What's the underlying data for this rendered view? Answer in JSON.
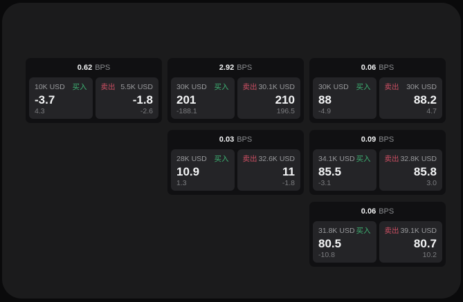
{
  "labels": {
    "bps_unit": "BPS",
    "buy": "买入",
    "sell": "卖出"
  },
  "colors": {
    "outer_bg": "#0a0a0b",
    "window_bg": "#1b1b1c",
    "card_bg": "#101012",
    "panel_bg": "#242427",
    "buy_green": "#3db273",
    "sell_red": "#cc4f63"
  },
  "cards": [
    {
      "bps": "0.62",
      "buy": {
        "size": "10K USD",
        "price": "-3.7",
        "change": "4.3"
      },
      "sell": {
        "size": "5.5K USD",
        "price": "-1.8",
        "change": "-2.6"
      }
    },
    {
      "bps": "2.92",
      "buy": {
        "size": "30K USD",
        "price": "201",
        "change": "-188.1"
      },
      "sell": {
        "size": "30.1K USD",
        "price": "210",
        "change": "196.5"
      }
    },
    {
      "bps": "0.06",
      "buy": {
        "size": "30K USD",
        "price": "88",
        "change": "-4.9"
      },
      "sell": {
        "size": "30K USD",
        "price": "88.2",
        "change": "4.7"
      }
    },
    {
      "bps": "0.03",
      "buy": {
        "size": "28K USD",
        "price": "10.9",
        "change": "1.3"
      },
      "sell": {
        "size": "32.6K USD",
        "price": "11",
        "change": "-1.8"
      }
    },
    {
      "bps": "0.09",
      "buy": {
        "size": "34.1K USD",
        "price": "85.5",
        "change": "-3.1"
      },
      "sell": {
        "size": "32.8K USD",
        "price": "85.8",
        "change": "3.0"
      }
    },
    {
      "bps": "0.06",
      "buy": {
        "size": "31.8K USD",
        "price": "80.5",
        "change": "-10.8"
      },
      "sell": {
        "size": "39.1K USD",
        "price": "80.7",
        "change": "10.2"
      }
    }
  ]
}
